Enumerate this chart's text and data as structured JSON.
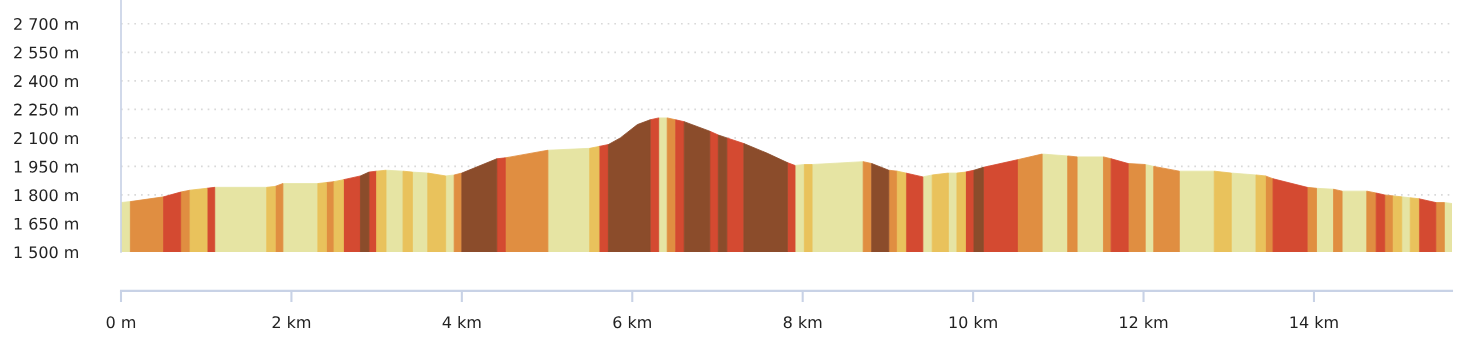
{
  "chart_data": {
    "type": "area",
    "series": [
      {
        "color": "#e6e4a3",
        "x": [
          0,
          0.11,
          null,
          1.1,
          1.71,
          null,
          1.9,
          2.31,
          null,
          3.11,
          3.31,
          null,
          3.42,
          3.6,
          null,
          3.81,
          3.91,
          null,
          5.01,
          5.5,
          null,
          6.31,
          6.41,
          null,
          7.91,
          8.02,
          null,
          8.11,
          8.71,
          null,
          9.41,
          9.52,
          null,
          9.71,
          9.81,
          null,
          10.81,
          11.11,
          null,
          11.22,
          11.53,
          null,
          12.02,
          12.12,
          null,
          12.42,
          12.83,
          null,
          13.03,
          13.32,
          null,
          14.03,
          14.23,
          null,
          14.33,
          14.62,
          null,
          15.03,
          15.13,
          null,
          15.53,
          15.62
        ],
        "values": [
          1760,
          1765,
          null,
          1840,
          1840,
          null,
          1860,
          1860,
          null,
          1930,
          1925,
          null,
          1920,
          1915,
          null,
          1900,
          1905,
          null,
          2035,
          2045,
          null,
          2205,
          2205,
          null,
          1955,
          1960,
          null,
          1960,
          1975,
          null,
          1895,
          1905,
          null,
          1915,
          1915,
          null,
          2015,
          2005,
          null,
          2000,
          2000,
          null,
          1960,
          1950,
          null,
          1925,
          1925,
          null,
          1915,
          1905,
          null,
          1835,
          1830,
          null,
          1820,
          1820,
          null,
          1790,
          1785,
          null,
          1760,
          1755
        ]
      },
      {
        "color": "#e08e41",
        "x": [
          0.11,
          0.5,
          null,
          0.7,
          0.81,
          null,
          1.81,
          1.9,
          null,
          2.41,
          2.5,
          null,
          3.91,
          4.0,
          null,
          4.51,
          5.01,
          null,
          6.41,
          6.51,
          null,
          8.71,
          8.81,
          null,
          9.01,
          9.11,
          null,
          10.52,
          10.81,
          null,
          11.11,
          11.22,
          null,
          11.53,
          11.62,
          null,
          11.82,
          12.02,
          null,
          12.12,
          12.42,
          null,
          13.43,
          13.52,
          null,
          13.92,
          14.03,
          null,
          14.23,
          14.33,
          null,
          14.62,
          14.73,
          null,
          14.83,
          14.93,
          null,
          15.43,
          15.53
        ],
        "values": [
          1765,
          1790,
          null,
          1815,
          1825,
          null,
          1845,
          1860,
          null,
          1865,
          1870,
          null,
          1905,
          1915,
          null,
          1995,
          2035,
          null,
          2205,
          2195,
          null,
          1975,
          1965,
          null,
          1930,
          1925,
          null,
          1985,
          2015,
          null,
          2005,
          2000,
          null,
          2000,
          1990,
          null,
          1965,
          1960,
          null,
          1950,
          1925,
          null,
          1900,
          1885,
          null,
          1840,
          1835,
          null,
          1830,
          1820,
          null,
          1820,
          1810,
          null,
          1800,
          1795,
          null,
          1760,
          1760
        ]
      },
      {
        "color": "#d44a31",
        "x": [
          0.5,
          0.7,
          null,
          1.01,
          1.1,
          null,
          2.61,
          2.81,
          null,
          2.91,
          3.0,
          null,
          4.41,
          4.51,
          null,
          5.61,
          5.72,
          null,
          6.21,
          6.31,
          null,
          6.51,
          6.61,
          null,
          6.91,
          7.01,
          null,
          7.11,
          7.31,
          null,
          7.82,
          7.91,
          null,
          9.21,
          9.41,
          null,
          9.91,
          10.01,
          null,
          10.12,
          10.52,
          null,
          11.62,
          11.82,
          null,
          13.52,
          13.92,
          null,
          14.73,
          14.83,
          null,
          15.23,
          15.43
        ],
        "values": [
          1790,
          1815,
          null,
          1835,
          1840,
          null,
          1880,
          1900,
          null,
          1920,
          1925,
          null,
          1990,
          1995,
          null,
          2055,
          2065,
          null,
          2195,
          2205,
          null,
          2195,
          2185,
          null,
          2135,
          2115,
          null,
          2100,
          2070,
          null,
          1970,
          1955,
          null,
          1915,
          1895,
          null,
          1920,
          1930,
          null,
          1945,
          1985,
          null,
          1990,
          1965,
          null,
          1885,
          1840,
          null,
          1810,
          1800,
          null,
          1780,
          1760
        ]
      },
      {
        "color": "#e9c25c",
        "x": [
          0.81,
          1.01,
          null,
          1.71,
          1.81,
          null,
          2.31,
          2.41,
          null,
          2.5,
          2.61,
          null,
          3.0,
          3.11,
          null,
          3.31,
          3.42,
          null,
          3.6,
          3.81,
          null,
          5.5,
          5.61,
          null,
          8.02,
          8.11,
          null,
          9.11,
          9.21,
          null,
          9.52,
          9.71,
          null,
          9.81,
          9.91,
          null,
          12.83,
          13.03,
          null,
          13.32,
          13.43,
          null,
          14.93,
          15.03,
          null,
          15.13,
          15.23
        ],
        "values": [
          1825,
          1835,
          null,
          1840,
          1845,
          null,
          1860,
          1865,
          null,
          1870,
          1880,
          null,
          1925,
          1930,
          null,
          1925,
          1920,
          null,
          1915,
          1900,
          null,
          2045,
          2055,
          null,
          1960,
          1960,
          null,
          1925,
          1915,
          null,
          1905,
          1915,
          null,
          1915,
          1920,
          null,
          1925,
          1915,
          null,
          1905,
          1900,
          null,
          1795,
          1790,
          null,
          1785,
          1780
        ]
      },
      {
        "color": "#8b4c2b",
        "x": [
          2.81,
          2.91,
          null,
          4.0,
          4.41,
          null,
          5.72,
          5.86,
          6.06,
          6.21,
          null,
          6.61,
          6.76,
          6.91,
          null,
          7.01,
          7.11,
          null,
          7.31,
          7.58,
          7.82,
          null,
          8.81,
          9.01,
          null,
          10.01,
          10.12
        ],
        "values": [
          1900,
          1920,
          null,
          1915,
          1990,
          null,
          2065,
          2100,
          2170,
          2195,
          null,
          2185,
          2160,
          2135,
          null,
          2115,
          2100,
          null,
          2070,
          2020,
          1970,
          null,
          1965,
          1930,
          null,
          1930,
          1945
        ]
      }
    ],
    "xlim": [
      0,
      15.62
    ],
    "xticks": [
      {
        "value": 0,
        "label": "0 m"
      },
      {
        "value": 2,
        "label": "2 km"
      },
      {
        "value": 4,
        "label": "4 km"
      },
      {
        "value": 6,
        "label": "6 km"
      },
      {
        "value": 8,
        "label": "8 km"
      },
      {
        "value": 10,
        "label": "10 km"
      },
      {
        "value": 12,
        "label": "12 km"
      },
      {
        "value": 14,
        "label": "14 km"
      }
    ],
    "ylim": [
      1500,
      2825
    ],
    "yticks": [
      {
        "value": 1500,
        "label": "1 500 m"
      },
      {
        "value": 1650,
        "label": "1 650 m"
      },
      {
        "value": 1800,
        "label": "1 800 m"
      },
      {
        "value": 1950,
        "label": "1 950 m"
      },
      {
        "value": 2100,
        "label": "2 100 m"
      },
      {
        "value": 2250,
        "label": "2 250 m"
      },
      {
        "value": 2400,
        "label": "2 400 m"
      },
      {
        "value": 2550,
        "label": "2 550 m"
      },
      {
        "value": 2700,
        "label": "2 700 m"
      }
    ],
    "grid": "y"
  }
}
